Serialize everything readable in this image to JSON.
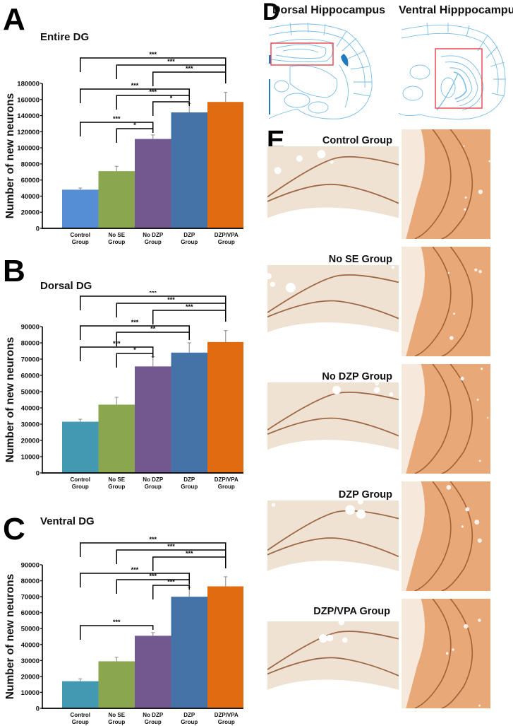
{
  "panels": {
    "A": "A",
    "B": "B",
    "C": "C",
    "D": "D",
    "E": "E"
  },
  "chart_data": [
    {
      "type": "bar",
      "panel": "A",
      "title": "Entire DG",
      "ylabel": "Number of new neurons",
      "xlabel": "",
      "categories": [
        [
          "Control",
          "Group"
        ],
        [
          "No SE",
          "Group"
        ],
        [
          "No DZP",
          "Group"
        ],
        [
          "DZP",
          "Group"
        ],
        [
          "DZP/VPA",
          "Group"
        ]
      ],
      "values": [
        48000,
        71000,
        111000,
        144000,
        157000
      ],
      "errors": [
        2000,
        6000,
        5000,
        11000,
        12000
      ],
      "colors": [
        "#558ed5",
        "#8aa64e",
        "#735890",
        "#4573a7",
        "#e06b10"
      ],
      "ylim": [
        0,
        180000
      ],
      "yticks": [
        0,
        20000,
        40000,
        60000,
        80000,
        100000,
        120000,
        140000,
        160000,
        180000
      ],
      "grid": false,
      "significance": [
        {
          "from": 0,
          "to": 4,
          "label": "***",
          "level": 1
        },
        {
          "from": 1,
          "to": 4,
          "label": "***",
          "level": 2
        },
        {
          "from": 2,
          "to": 4,
          "label": "***",
          "level": 3
        },
        {
          "from": 0,
          "to": 3,
          "label": "***",
          "level": 4
        },
        {
          "from": 1,
          "to": 3,
          "label": "***",
          "level": 5
        },
        {
          "from": 2,
          "to": 3,
          "label": "*",
          "level": 6
        },
        {
          "from": 0,
          "to": 2,
          "label": "***",
          "level": 7
        },
        {
          "from": 1,
          "to": 2,
          "label": "*",
          "level": 8
        }
      ]
    },
    {
      "type": "bar",
      "panel": "B",
      "title": "Dorsal DG",
      "ylabel": "Number of new neurons",
      "xlabel": "",
      "categories": [
        [
          "Control",
          "Group"
        ],
        [
          "No SE",
          "Group"
        ],
        [
          "No DZP",
          "Group"
        ],
        [
          "DZP",
          "Group"
        ],
        [
          "DZP/VPA",
          "Group"
        ]
      ],
      "values": [
        31500,
        42000,
        65500,
        74000,
        80500
      ],
      "errors": [
        1500,
        4500,
        6000,
        6000,
        7000
      ],
      "colors": [
        "#4399b1",
        "#8aa64e",
        "#735890",
        "#4573a7",
        "#e06b10"
      ],
      "ylim": [
        0,
        90000
      ],
      "yticks": [
        0,
        10000,
        20000,
        30000,
        40000,
        50000,
        60000,
        70000,
        80000,
        90000
      ],
      "grid": false,
      "significance": [
        {
          "from": 0,
          "to": 4,
          "label": "***",
          "level": 1
        },
        {
          "from": 1,
          "to": 4,
          "label": "***",
          "level": 2
        },
        {
          "from": 2,
          "to": 4,
          "label": "***",
          "level": 3
        },
        {
          "from": 0,
          "to": 3,
          "label": "***",
          "level": 4
        },
        {
          "from": 1,
          "to": 3,
          "label": "**",
          "level": 5
        },
        {
          "from": 0,
          "to": 2,
          "label": "***",
          "level": 6
        },
        {
          "from": 1,
          "to": 2,
          "label": "*",
          "level": 7
        }
      ]
    },
    {
      "type": "bar",
      "panel": "C",
      "title": "Ventral DG",
      "ylabel": "Number of new neurons",
      "xlabel": "",
      "categories": [
        [
          "Control",
          "Group"
        ],
        [
          "No SE",
          "Group"
        ],
        [
          "No DZP",
          "Group"
        ],
        [
          "DZP",
          "Group"
        ],
        [
          "DZP/VPA",
          "Group"
        ]
      ],
      "values": [
        17000,
        29500,
        45500,
        70000,
        76500
      ],
      "errors": [
        1500,
        2500,
        2000,
        6000,
        6000
      ],
      "colors": [
        "#4399b1",
        "#8aa64e",
        "#735890",
        "#4573a7",
        "#e06b10"
      ],
      "ylim": [
        0,
        90000
      ],
      "yticks": [
        0,
        10000,
        20000,
        30000,
        40000,
        50000,
        60000,
        70000,
        80000,
        90000
      ],
      "grid": false,
      "significance": [
        {
          "from": 0,
          "to": 4,
          "label": "***",
          "level": 1
        },
        {
          "from": 1,
          "to": 4,
          "label": "***",
          "level": 2
        },
        {
          "from": 2,
          "to": 4,
          "label": "***",
          "level": 3
        },
        {
          "from": 0,
          "to": 3,
          "label": "***",
          "level": 4
        },
        {
          "from": 1,
          "to": 3,
          "label": "***",
          "level": 5
        },
        {
          "from": 2,
          "to": 3,
          "label": "***",
          "level": 6
        },
        {
          "from": 0,
          "to": 2,
          "label": "***",
          "level": 7
        }
      ]
    }
  ],
  "atlas": {
    "dorsal_title": "Dorsal Hippocampus",
    "ventral_title": "Ventral Hipppocampus",
    "outline_color": "#6fb5e0",
    "highlight_color": "#e8434c"
  },
  "micrographs": {
    "groups": [
      "Control Group",
      "No SE Group",
      "No DZP Group",
      "DZP Group",
      "DZP/VPA Group"
    ],
    "dorsal_tint": "#efe2d3",
    "ventral_tint": "#e9a877",
    "stain_color": "#8a4a22"
  }
}
